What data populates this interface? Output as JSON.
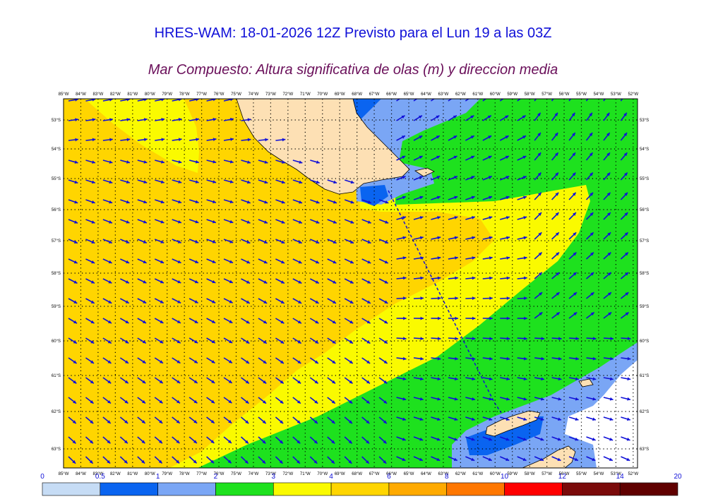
{
  "title": "HRES-WAM: 18-01-2026 12Z Previsto para el Lun 19 a las 03Z",
  "subtitle": "Mar Compuesto: Altura significativa de olas (m) y direccion media",
  "lon_labels": [
    "85°W",
    "84°W",
    "83°W",
    "82°W",
    "81°W",
    "80°W",
    "79°W",
    "78°W",
    "77°W",
    "76°W",
    "75°W",
    "74°W",
    "73°W",
    "72°W",
    "71°W",
    "70°W",
    "69°W",
    "68°W",
    "67°W",
    "66°W",
    "65°W",
    "64°W",
    "63°W",
    "62°W",
    "61°W",
    "60°W",
    "59°W",
    "58°W",
    "57°W",
    "56°W",
    "55°W",
    "54°W",
    "53°W",
    "52°W"
  ],
  "lat_labels": [
    "53°S",
    "54°S",
    "55°S",
    "56°S",
    "57°S",
    "58°S",
    "59°S",
    "60°S",
    "61°S",
    "62°S",
    "63°S"
  ],
  "colorbar": {
    "ticks": [
      "0",
      "0.5",
      "1",
      "2",
      "3",
      "4",
      "6",
      "8",
      "10",
      "12",
      "14",
      "20"
    ],
    "colors": [
      "#c6dcf5",
      "#0a64f0",
      "#7aa6f5",
      "#1ee11e",
      "#fafa00",
      "#ffd500",
      "#ffaa00",
      "#ff7700",
      "#ff0000",
      "#7a0a0a",
      "#600000",
      "#303030"
    ]
  },
  "legend_colors": {
    "land": "#fde0b4",
    "arrow": "#1010d8",
    "under_half": "#ffffff"
  }
}
